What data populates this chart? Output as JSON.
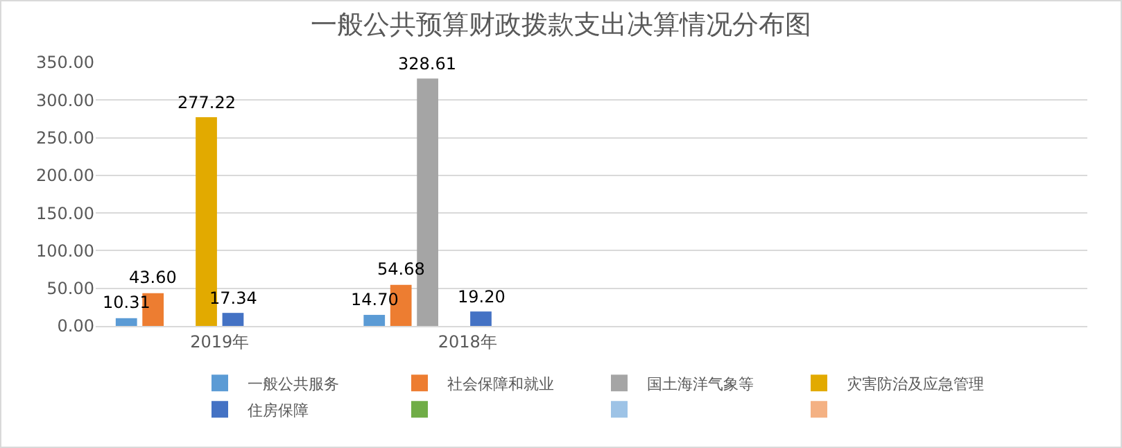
{
  "chart_data": {
    "type": "bar",
    "title": "一般公共预算财政拨款支出决算情况分布图",
    "categories": [
      "2019年",
      "2018年",
      null,
      null
    ],
    "ylim": [
      0,
      350
    ],
    "yticks": [
      {
        "value": 0,
        "label": "0.00"
      },
      {
        "value": 50,
        "label": "50.00"
      },
      {
        "value": 100,
        "label": "100.00"
      },
      {
        "value": 150,
        "label": "150.00"
      },
      {
        "value": 200,
        "label": "200.00"
      },
      {
        "value": 250,
        "label": "250.00"
      },
      {
        "value": 300,
        "label": "300.00"
      },
      {
        "value": 350,
        "label": "350.00"
      }
    ],
    "grid": "y",
    "legend": "bottom",
    "series": [
      {
        "name": "一般公共服务",
        "color": "#5b9bd5",
        "values": [
          10.31,
          14.7,
          null,
          null
        ],
        "value_labels": [
          "10.31",
          "14.70",
          null,
          null
        ]
      },
      {
        "name": "社会保障和就业",
        "color": "#ed7d31",
        "values": [
          43.6,
          54.68,
          null,
          null
        ],
        "value_labels": [
          "43.60",
          "54.68",
          null,
          null
        ]
      },
      {
        "name": "国土海洋气象等",
        "color": "#a5a5a5",
        "values": [
          null,
          328.61,
          null,
          null
        ],
        "value_labels": [
          null,
          "328.61",
          null,
          null
        ]
      },
      {
        "name": "灾害防治及应急管理",
        "color": "#e2aa00",
        "values": [
          277.22,
          null,
          null,
          null
        ],
        "value_labels": [
          "277.22",
          null,
          null,
          null
        ]
      },
      {
        "name": "住房保障",
        "color": "#4472c4",
        "values": [
          17.34,
          19.2,
          null,
          null
        ],
        "value_labels": [
          "17.34",
          "19.20",
          null,
          null
        ]
      },
      {
        "color": "#70ad47",
        "values": [
          null,
          null,
          null,
          null
        ]
      },
      {
        "color": "#9dc3e6",
        "values": [
          null,
          null,
          null,
          null
        ]
      },
      {
        "color": "#f4b183",
        "values": [
          null,
          null,
          null,
          null
        ]
      }
    ]
  }
}
